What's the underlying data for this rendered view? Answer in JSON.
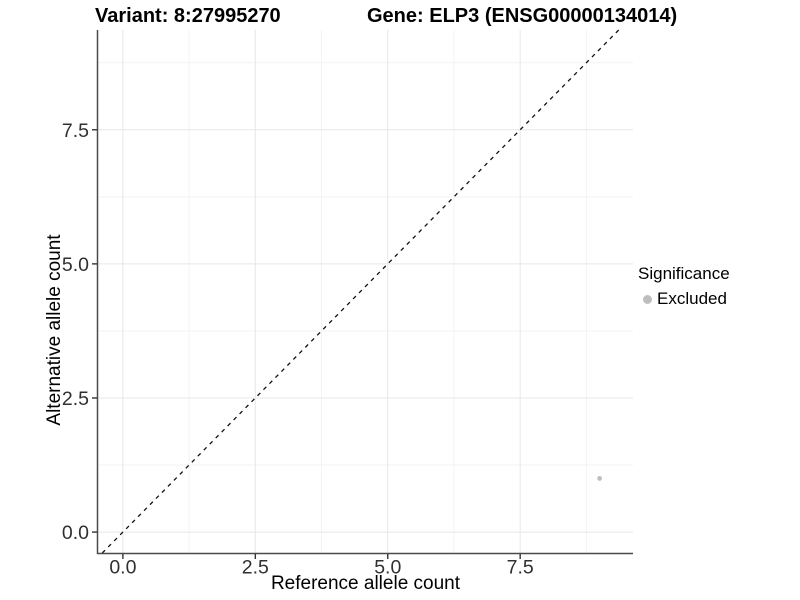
{
  "chart_data": {
    "type": "scatter",
    "titles": [
      "Variant: 8:27995270",
      "Gene: ELP3 (ENSG00000134014)"
    ],
    "xlabel": "Reference allele count",
    "ylabel": "Alternative allele count",
    "xlim": [
      -0.47,
      9.63
    ],
    "ylim": [
      -0.39,
      9.36
    ],
    "x_ticks": [
      0,
      2.5,
      5,
      7.5
    ],
    "y_ticks": [
      0,
      2.5,
      5,
      7.5
    ],
    "x_minor_ticks": [
      1.25,
      3.75,
      6.25,
      8.75
    ],
    "y_minor_ticks": [
      1.25,
      3.75,
      6.25,
      8.75
    ],
    "tick_decimals": 1,
    "grid": "major+minor",
    "identity_line": {
      "type": "y=x",
      "style": "dashed",
      "color": "#111111"
    },
    "series": [
      {
        "name": "Excluded",
        "points": [
          {
            "x": 9,
            "y": 1
          }
        ]
      }
    ],
    "legend": {
      "title": "Significance",
      "position": "right",
      "items": [
        {
          "label": "Excluded",
          "color": "#bebebe"
        }
      ]
    },
    "colors": {
      "point": "#bebebe",
      "grid_major": "#e7e7e7",
      "grid_minor": "#f3f3f3",
      "axis_line": "#4a4a4a",
      "tick_mark": "#333333",
      "tick_text": "#303030",
      "title_text": "#000000"
    }
  }
}
